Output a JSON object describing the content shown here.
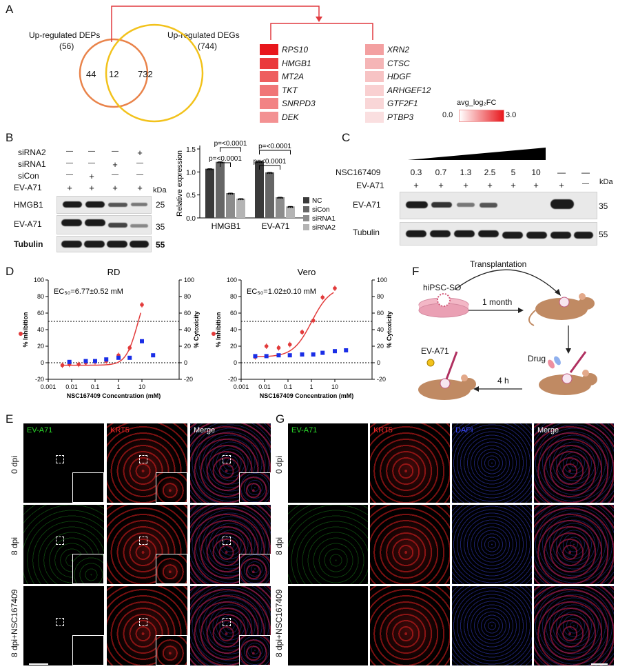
{
  "panels": {
    "A": "A",
    "B": "B",
    "C": "C",
    "D": "D",
    "E": "E",
    "F": "F",
    "G": "G"
  },
  "panelA": {
    "dep_title": "Up-regulated DEPs",
    "dep_count": "(56)",
    "deg_title": "Up-regulated DEGs",
    "deg_count": "(744)",
    "only_dep": "44",
    "overlap": "12",
    "only_deg": "732",
    "genes_left": [
      "RPS10",
      "HMGB1",
      "MT2A",
      "TKT",
      "SNRPD3",
      "DEK"
    ],
    "genes_right": [
      "XRN2",
      "CTSC",
      "HDGF",
      "ARHGEF12",
      "GTF2F1",
      "PTBP3"
    ],
    "colors_left": [
      "#e8171c",
      "#ea3a3c",
      "#ee5e5f",
      "#f07677",
      "#f28384",
      "#f39192"
    ],
    "colors_right": [
      "#f3a0a1",
      "#f5b5b6",
      "#f7c3c4",
      "#f9d0d1",
      "#f9d6d7",
      "#fadfe0"
    ],
    "legend_title": "avg_log₂FC",
    "legend_min": "0.0",
    "legend_max": "3.0"
  },
  "panelB": {
    "row_labels": [
      "siRNA2",
      "siRNA1",
      "siCon",
      "EV-A71"
    ],
    "signs": [
      [
        "—",
        "—",
        "—",
        "+"
      ],
      [
        "—",
        "—",
        "+",
        "—"
      ],
      [
        "—",
        "+",
        "—",
        "—"
      ],
      [
        "+",
        "+",
        "+",
        "+"
      ]
    ],
    "kda": "kDa",
    "blot_labels": [
      "HMGB1",
      "EV-A71",
      "Tubulin"
    ],
    "markers": [
      "25",
      "35",
      "55"
    ]
  },
  "chart_data": {
    "type": "bar",
    "ylabel": "Relative expression",
    "categories": [
      "HMGB1",
      "EV-A71"
    ],
    "ylim": [
      0,
      1.5
    ],
    "yticks": [
      "0.0",
      "0.5",
      "1.0",
      "1.5"
    ],
    "series": [
      {
        "name": "NC",
        "values": [
          1.07,
          1.23
        ],
        "color": "#3a3a3a"
      },
      {
        "name": "siCon",
        "values": [
          1.22,
          0.99
        ],
        "color": "#666666"
      },
      {
        "name": "siRNA1",
        "values": [
          0.54,
          0.45
        ],
        "color": "#8c8c8c"
      },
      {
        "name": "siRNA2",
        "values": [
          0.42,
          0.25
        ],
        "color": "#b4b4b4"
      }
    ],
    "annotations": [
      "p=<0.0001",
      "p=<0.0001",
      "p=<0.0001",
      "p=<0.0001"
    ]
  },
  "panelC": {
    "drug_label": "NSC167409",
    "virus_label": "EV-A71",
    "concentrations": [
      "0.3",
      "0.7",
      "1.3",
      "2.5",
      "5",
      "10",
      "—",
      "—"
    ],
    "virus_signs": [
      "+",
      "+",
      "+",
      "+",
      "+",
      "+",
      "+",
      "—"
    ],
    "kda": "kDa",
    "blot_labels": [
      "EV-A71",
      "Tubulin"
    ],
    "markers": [
      "35",
      "55"
    ]
  },
  "panelD": {
    "plots": [
      {
        "title": "RD",
        "ec50": "EC₅₀=6.77±0.52 mM",
        "inhibition": [
          [
            0.004,
            -3
          ],
          [
            0.008,
            -2
          ],
          [
            0.02,
            -2
          ],
          [
            0.04,
            0
          ],
          [
            0.1,
            1
          ],
          [
            0.3,
            2
          ],
          [
            1,
            9
          ],
          [
            3,
            18
          ],
          [
            10,
            70
          ]
        ],
        "cytotoxicity": [
          [
            0.008,
            1
          ],
          [
            0.04,
            2
          ],
          [
            0.1,
            2
          ],
          [
            0.3,
            4
          ],
          [
            1,
            6
          ],
          [
            3,
            6
          ],
          [
            10,
            26
          ],
          [
            30,
            9
          ]
        ]
      },
      {
        "title": "Vero",
        "ec50": "EC₅₀=1.02±0.10 mM",
        "inhibition": [
          [
            0.004,
            7
          ],
          [
            0.012,
            20
          ],
          [
            0.04,
            18
          ],
          [
            0.12,
            22
          ],
          [
            0.4,
            37
          ],
          [
            1.2,
            51
          ],
          [
            3,
            79
          ],
          [
            10,
            90
          ]
        ],
        "cytotoxicity": [
          [
            0.004,
            8
          ],
          [
            0.012,
            8
          ],
          [
            0.04,
            9
          ],
          [
            0.12,
            9
          ],
          [
            0.4,
            10
          ],
          [
            1.2,
            10
          ],
          [
            3,
            12
          ],
          [
            10,
            14
          ],
          [
            30,
            15
          ]
        ]
      }
    ],
    "xlabel": "NSC167409 Concentration (mM)",
    "ylabel_left": "% Inhibition",
    "ylabel_right": "% Cytoxicity",
    "xticks": [
      "0.001",
      "0.01",
      "0.1",
      "1",
      "10"
    ],
    "yticks": [
      "-20",
      "0",
      "20",
      "40",
      "60",
      "80",
      "100"
    ]
  },
  "panelF": {
    "transplant": "Transplantation",
    "organoid": "hiPSC-SO",
    "month": "1 month",
    "virus": "EV-A71",
    "drug": "Drug",
    "hours": "4 h"
  },
  "panelE": {
    "cols": [
      "EV-A71",
      "KRT5",
      "Merge"
    ],
    "rows": [
      "0 dpi",
      "8 dpi",
      "8 dpi+NSC167409"
    ]
  },
  "panelG": {
    "cols": [
      "EV-A71",
      "KRT5",
      "DAPI",
      "Merge"
    ],
    "rows": [
      "0 dpi",
      "8 dpi",
      "8 dpi+NSC167409"
    ]
  },
  "colors": {
    "green": "#2bdc2b",
    "red": "#ff2a2a",
    "blue": "#3a4aff",
    "orange": "#e9834a",
    "yellow": "#f2c21c",
    "arrow": "#e0393e"
  }
}
